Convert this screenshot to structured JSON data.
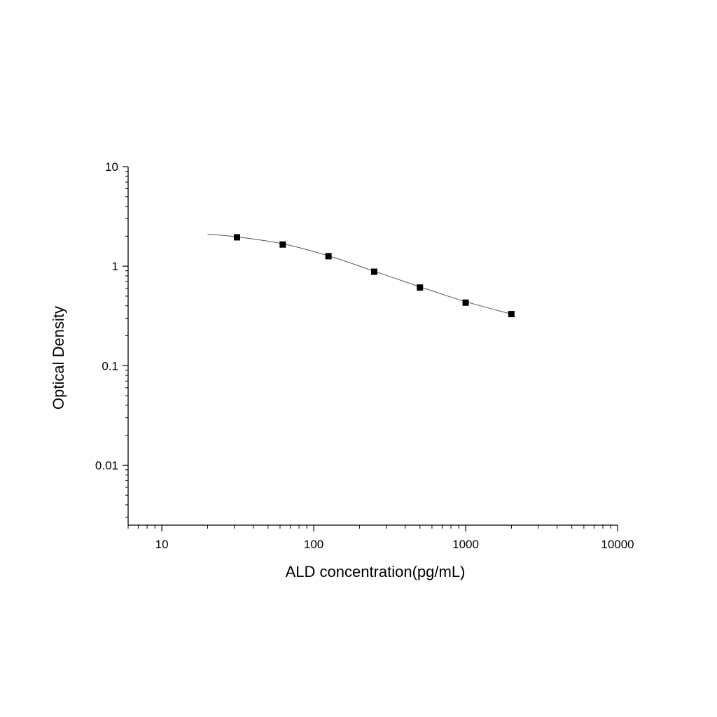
{
  "chart_data": {
    "type": "scatter",
    "title": "",
    "xlabel": "ALD concentration(pg/mL)",
    "ylabel": "Optical Density",
    "x_scale": "log",
    "y_scale": "log",
    "xlim": [
      6,
      10000
    ],
    "ylim": [
      0.0025,
      10
    ],
    "x_ticks": [
      {
        "value": 10,
        "label": "10"
      },
      {
        "value": 100,
        "label": "100"
      },
      {
        "value": 1000,
        "label": "1000"
      },
      {
        "value": 10000,
        "label": "10000"
      }
    ],
    "y_ticks": [
      {
        "value": 10,
        "label": "10"
      },
      {
        "value": 1,
        "label": "1"
      },
      {
        "value": 0.1,
        "label": "0.1"
      },
      {
        "value": 0.01,
        "label": "0.01"
      }
    ],
    "grid": false,
    "legend": "none",
    "marker_color": "#000000",
    "line_color": "#555555",
    "series": [
      {
        "x": [
          31.25,
          62.5,
          125,
          250,
          500,
          1000,
          2000
        ],
        "y": [
          1.95,
          1.65,
          1.26,
          0.88,
          0.61,
          0.43,
          0.33
        ]
      }
    ],
    "fit_curve": {
      "x": [
        20,
        31.25,
        62.5,
        125,
        250,
        500,
        1000,
        2000
      ],
      "y": [
        2.1,
        1.97,
        1.68,
        1.27,
        0.89,
        0.62,
        0.44,
        0.33
      ]
    }
  }
}
